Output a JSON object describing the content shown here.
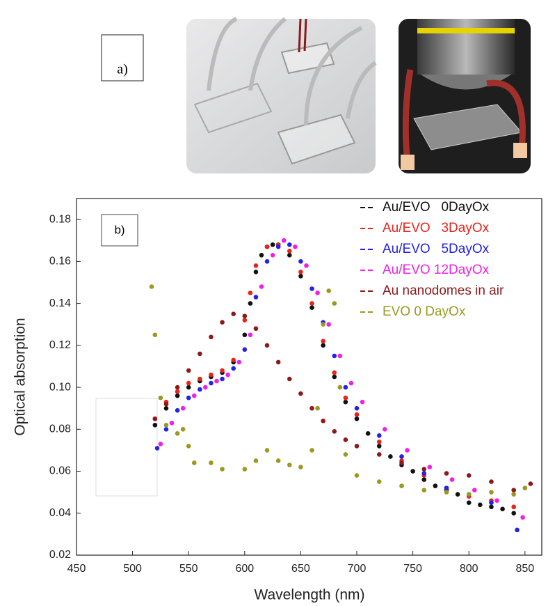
{
  "chart_data": {
    "type": "scatter",
    "panel_label_a": "a)",
    "panel_label_b": "b)",
    "x_label": "Wavelength (nm)",
    "y_label": "Optical absorption",
    "xlim": [
      450,
      865
    ],
    "ylim": [
      0.02,
      0.19
    ],
    "xticks": [
      450,
      500,
      550,
      600,
      650,
      700,
      750,
      800,
      850
    ],
    "yticks": [
      0.02,
      0.04,
      0.06,
      0.08,
      {
        "value": 0.1,
        "label": "0.10"
      },
      0.12,
      0.14,
      0.16,
      0.18
    ],
    "legend": "upper right",
    "series": [
      {
        "name": "Au/EVO   0DayOx",
        "color": "#111111",
        "x": [
          520,
          530,
          540,
          550,
          560,
          570,
          580,
          590,
          600,
          605,
          610,
          615,
          620,
          625,
          630,
          640,
          650,
          660,
          670,
          680,
          690,
          700,
          710,
          720,
          730,
          740,
          750,
          760,
          770,
          780,
          790,
          800,
          810,
          820,
          830,
          840
        ],
        "values": [
          0.082,
          0.09,
          0.096,
          0.1,
          0.103,
          0.105,
          0.107,
          0.112,
          0.125,
          0.14,
          0.155,
          0.163,
          0.167,
          0.168,
          0.168,
          0.163,
          0.153,
          0.138,
          0.12,
          0.105,
          0.093,
          0.085,
          0.078,
          0.072,
          0.067,
          0.063,
          0.06,
          0.056,
          0.053,
          0.051,
          0.049,
          0.045,
          0.044,
          0.043,
          0.042,
          0.04
        ]
      },
      {
        "name": "Au/EVO   3DayOx",
        "color": "#e8231c",
        "x": [
          520,
          530,
          540,
          550,
          560,
          570,
          580,
          590,
          600,
          605,
          610,
          620,
          630,
          640,
          650,
          660,
          670,
          680,
          690,
          700,
          720,
          740,
          760,
          780,
          800,
          820,
          840
        ],
        "values": [
          0.085,
          0.093,
          0.098,
          0.102,
          0.104,
          0.106,
          0.108,
          0.113,
          0.132,
          0.145,
          0.158,
          0.167,
          0.168,
          0.165,
          0.155,
          0.14,
          0.122,
          0.107,
          0.095,
          0.087,
          0.074,
          0.065,
          0.058,
          0.052,
          0.048,
          0.046,
          0.043
        ]
      },
      {
        "name": "Au/EVO   5DayOx",
        "color": "#2323e8",
        "x": [
          522,
          530,
          540,
          550,
          560,
          570,
          580,
          590,
          600,
          610,
          620,
          630,
          640,
          650,
          660,
          670,
          680,
          690,
          700,
          720,
          740,
          760,
          780,
          800,
          820,
          843
        ],
        "values": [
          0.071,
          0.08,
          0.089,
          0.095,
          0.099,
          0.102,
          0.104,
          0.109,
          0.118,
          0.143,
          0.16,
          0.167,
          0.168,
          0.16,
          0.147,
          0.131,
          0.115,
          0.1,
          0.09,
          0.077,
          0.067,
          0.059,
          0.052,
          0.049,
          0.045,
          0.032
        ]
      },
      {
        "name": "Au/EVO 12DayOx",
        "color": "#f020e8",
        "x": [
          525,
          535,
          545,
          555,
          565,
          575,
          585,
          595,
          605,
          615,
          625,
          635,
          645,
          655,
          665,
          675,
          685,
          695,
          705,
          725,
          745,
          765,
          785,
          805,
          825,
          848
        ],
        "values": [
          0.073,
          0.083,
          0.09,
          0.096,
          0.1,
          0.103,
          0.106,
          0.112,
          0.125,
          0.148,
          0.163,
          0.17,
          0.167,
          0.158,
          0.145,
          0.13,
          0.115,
          0.102,
          0.093,
          0.08,
          0.07,
          0.062,
          0.056,
          0.051,
          0.046,
          0.038
        ]
      },
      {
        "name": "Au nanodomes in air",
        "color": "#8b1a1a",
        "x": [
          520,
          530,
          540,
          550,
          560,
          570,
          580,
          590,
          600,
          610,
          620,
          630,
          640,
          650,
          660,
          670,
          680,
          690,
          700,
          720,
          740,
          760,
          780,
          800,
          820,
          840,
          855
        ],
        "values": [
          0.085,
          0.092,
          0.1,
          0.108,
          0.116,
          0.124,
          0.131,
          0.135,
          0.134,
          0.128,
          0.12,
          0.112,
          0.104,
          0.097,
          0.09,
          0.084,
          0.079,
          0.075,
          0.072,
          0.068,
          0.064,
          0.061,
          0.059,
          0.058,
          0.055,
          0.051,
          0.054
        ]
      },
      {
        "name": "EVO 0 DayOx",
        "color": "#9a9a20",
        "x": [
          517,
          520,
          525,
          530,
          540,
          545,
          550,
          555,
          570,
          580,
          600,
          610,
          620,
          630,
          640,
          650,
          660,
          665,
          670,
          675,
          680,
          685,
          690,
          700,
          720,
          740,
          760,
          780,
          800,
          820,
          840,
          850
        ],
        "values": [
          0.148,
          0.125,
          0.095,
          0.082,
          0.078,
          0.08,
          0.072,
          0.064,
          0.064,
          0.061,
          0.061,
          0.065,
          0.07,
          0.065,
          0.063,
          0.062,
          0.07,
          0.09,
          0.13,
          0.146,
          0.14,
          0.1,
          0.068,
          0.058,
          0.055,
          0.053,
          0.051,
          0.05,
          0.049,
          0.05,
          0.049,
          0.052
        ]
      }
    ]
  }
}
